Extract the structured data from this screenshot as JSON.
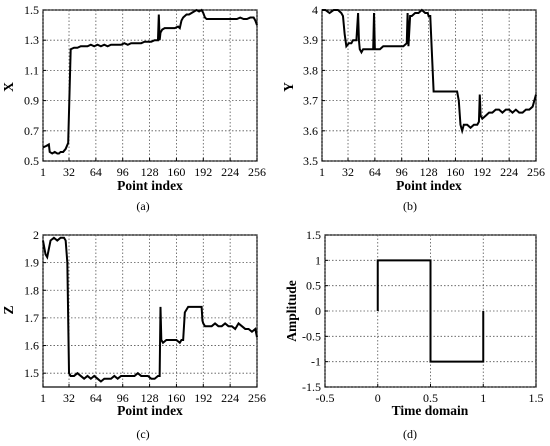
{
  "chart_data": [
    {
      "id": "a",
      "type": "line",
      "panel_label": "(a)",
      "xlabel": "Point  index",
      "ylabel": "X",
      "xlim": [
        1,
        256
      ],
      "ylim": [
        0.5,
        1.5
      ],
      "xticks": [
        1,
        32,
        64,
        96,
        128,
        160,
        192,
        224,
        256
      ],
      "yticks": [
        0.5,
        0.7,
        0.9,
        1.1,
        1.3,
        1.5
      ],
      "grid": true,
      "series": [
        {
          "x": [
            1,
            5,
            8,
            9,
            12,
            15,
            18,
            20,
            22,
            25,
            28,
            31,
            34,
            38,
            42,
            46,
            50,
            54,
            58,
            62,
            66,
            70,
            74,
            78,
            82,
            86,
            90,
            94,
            98,
            102,
            106,
            110,
            114,
            118,
            122,
            126,
            130,
            134,
            138,
            139,
            140,
            141,
            143,
            146,
            150,
            154,
            158,
            162,
            164,
            166,
            168,
            170,
            172,
            175,
            178,
            181,
            184,
            187,
            190,
            192,
            194,
            196,
            200,
            204,
            208,
            212,
            216,
            220,
            224,
            228,
            232,
            236,
            240,
            244,
            248,
            252,
            254,
            256
          ],
          "y": [
            0.59,
            0.6,
            0.61,
            0.56,
            0.55,
            0.56,
            0.55,
            0.55,
            0.56,
            0.56,
            0.58,
            0.62,
            1.24,
            1.25,
            1.25,
            1.26,
            1.26,
            1.26,
            1.27,
            1.26,
            1.27,
            1.26,
            1.27,
            1.26,
            1.27,
            1.27,
            1.27,
            1.27,
            1.28,
            1.27,
            1.28,
            1.28,
            1.28,
            1.28,
            1.29,
            1.29,
            1.29,
            1.3,
            1.3,
            1.47,
            1.3,
            1.35,
            1.37,
            1.38,
            1.38,
            1.38,
            1.38,
            1.39,
            1.38,
            1.43,
            1.45,
            1.46,
            1.47,
            1.47,
            1.48,
            1.49,
            1.5,
            1.49,
            1.5,
            1.48,
            1.45,
            1.44,
            1.44,
            1.44,
            1.44,
            1.44,
            1.44,
            1.44,
            1.44,
            1.44,
            1.44,
            1.45,
            1.44,
            1.44,
            1.45,
            1.45,
            1.43,
            1.4
          ]
        }
      ]
    },
    {
      "id": "b",
      "type": "line",
      "panel_label": "(b)",
      "xlabel": "Point  index",
      "ylabel": "Y",
      "xlim": [
        1,
        256
      ],
      "ylim": [
        3.5,
        4
      ],
      "xticks": [
        1,
        32,
        64,
        96,
        128,
        160,
        192,
        224,
        256
      ],
      "yticks": [
        3.5,
        3.6,
        3.7,
        3.8,
        3.9,
        4
      ],
      "grid": true,
      "series": [
        {
          "x": [
            1,
            5,
            10,
            15,
            20,
            24,
            26,
            28,
            30,
            33,
            36,
            38,
            40,
            42,
            44,
            45,
            46,
            48,
            50,
            54,
            58,
            62,
            63,
            64,
            66,
            70,
            74,
            78,
            82,
            86,
            90,
            94,
            98,
            102,
            103,
            104,
            106,
            108,
            112,
            116,
            120,
            124,
            127,
            128,
            130,
            134,
            138,
            142,
            146,
            150,
            154,
            158,
            162,
            164,
            166,
            168,
            170,
            174,
            178,
            182,
            186,
            188,
            189,
            190,
            192,
            196,
            200,
            204,
            208,
            212,
            216,
            220,
            224,
            228,
            232,
            236,
            240,
            244,
            248,
            252,
            254,
            256
          ],
          "y": [
            4.0,
            4.0,
            3.99,
            4.0,
            4.0,
            3.99,
            3.98,
            3.92,
            3.88,
            3.89,
            3.89,
            3.9,
            3.9,
            3.9,
            3.99,
            3.9,
            3.87,
            3.86,
            3.87,
            3.87,
            3.87,
            3.87,
            3.99,
            3.87,
            3.87,
            3.87,
            3.88,
            3.88,
            3.88,
            3.88,
            3.88,
            3.88,
            3.88,
            3.89,
            3.99,
            3.88,
            3.98,
            3.98,
            3.99,
            3.99,
            4.0,
            3.99,
            3.99,
            3.98,
            3.98,
            3.73,
            3.73,
            3.73,
            3.73,
            3.73,
            3.73,
            3.73,
            3.73,
            3.7,
            3.62,
            3.6,
            3.62,
            3.62,
            3.61,
            3.62,
            3.62,
            3.63,
            3.72,
            3.65,
            3.64,
            3.65,
            3.66,
            3.66,
            3.67,
            3.67,
            3.66,
            3.67,
            3.67,
            3.66,
            3.67,
            3.66,
            3.66,
            3.67,
            3.67,
            3.68,
            3.7,
            3.72
          ]
        }
      ]
    },
    {
      "id": "c",
      "type": "line",
      "panel_label": "(c)",
      "xlabel": "Point  index",
      "ylabel": "Z",
      "xlim": [
        1,
        256
      ],
      "ylim": [
        1.45,
        2
      ],
      "xticks": [
        1,
        32,
        64,
        96,
        128,
        160,
        192,
        224,
        256
      ],
      "yticks": [
        1.5,
        1.6,
        1.7,
        1.8,
        1.9,
        2
      ],
      "grid": true,
      "series": [
        {
          "x": [
            1,
            4,
            6,
            8,
            10,
            14,
            18,
            22,
            26,
            28,
            30,
            32,
            34,
            38,
            42,
            46,
            50,
            54,
            58,
            62,
            66,
            70,
            74,
            78,
            82,
            86,
            90,
            94,
            98,
            102,
            106,
            110,
            114,
            118,
            122,
            126,
            130,
            134,
            138,
            140,
            141,
            142,
            144,
            148,
            152,
            156,
            160,
            164,
            166,
            168,
            170,
            174,
            178,
            182,
            186,
            190,
            191,
            192,
            194,
            198,
            202,
            206,
            210,
            214,
            218,
            222,
            226,
            230,
            234,
            238,
            242,
            246,
            250,
            254,
            256
          ],
          "y": [
            1.98,
            1.93,
            1.92,
            1.95,
            1.98,
            1.99,
            1.98,
            1.99,
            1.99,
            1.98,
            1.9,
            1.5,
            1.49,
            1.49,
            1.5,
            1.49,
            1.48,
            1.49,
            1.48,
            1.49,
            1.48,
            1.47,
            1.48,
            1.48,
            1.48,
            1.49,
            1.48,
            1.49,
            1.49,
            1.49,
            1.49,
            1.49,
            1.5,
            1.49,
            1.49,
            1.49,
            1.48,
            1.48,
            1.49,
            1.49,
            1.74,
            1.62,
            1.61,
            1.62,
            1.62,
            1.62,
            1.62,
            1.61,
            1.62,
            1.62,
            1.72,
            1.74,
            1.74,
            1.74,
            1.74,
            1.74,
            1.69,
            1.68,
            1.67,
            1.67,
            1.67,
            1.68,
            1.67,
            1.67,
            1.68,
            1.67,
            1.67,
            1.66,
            1.68,
            1.67,
            1.66,
            1.66,
            1.65,
            1.66,
            1.63
          ]
        }
      ]
    },
    {
      "id": "d",
      "type": "line",
      "panel_label": "(d)",
      "xlabel": "Time domain",
      "ylabel": "Amplitude",
      "xlim": [
        -0.5,
        1.5
      ],
      "ylim": [
        -1.5,
        1.5
      ],
      "xticks": [
        -0.5,
        0,
        0.5,
        1,
        1.5
      ],
      "yticks": [
        -1.5,
        -1,
        -0.5,
        0,
        0.5,
        1,
        1.5
      ],
      "grid": true,
      "series": [
        {
          "x": [
            0,
            0,
            0.5,
            0.5,
            1,
            1
          ],
          "y": [
            0,
            1,
            1,
            -1,
            -1,
            0
          ]
        }
      ]
    }
  ]
}
